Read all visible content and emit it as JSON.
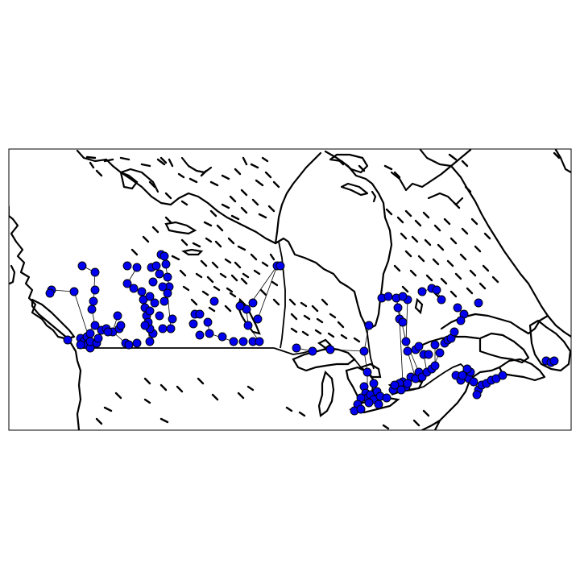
{
  "map": {
    "region": "Canada",
    "style": {
      "node_color": "#0000ee",
      "node_stroke": "#000000",
      "line_color": "#000000",
      "background": "#ffffff"
    }
  }
}
